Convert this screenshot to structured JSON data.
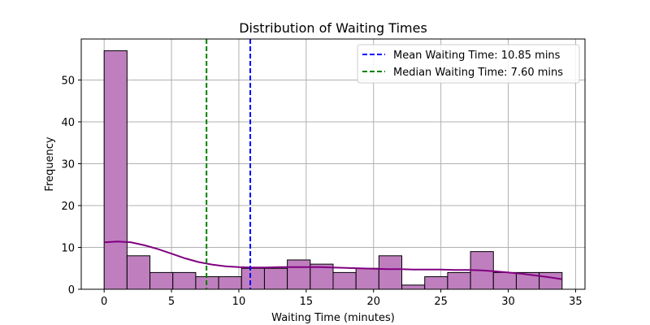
{
  "chart_data": {
    "type": "histogram",
    "title": "Distribution of Waiting Times",
    "xlabel": "Waiting Time (minutes)",
    "ylabel": "Frequency",
    "xlim": [
      -1.7,
      35.7
    ],
    "ylim": [
      0,
      59.8
    ],
    "xticks": [
      0,
      5,
      10,
      15,
      20,
      25,
      30,
      35
    ],
    "yticks": [
      0,
      10,
      20,
      30,
      40,
      50
    ],
    "grid": true,
    "bin_edges": [
      0,
      1.7,
      3.4,
      5.1,
      6.8,
      8.5,
      10.2,
      11.9,
      13.6,
      15.3,
      17.0,
      18.7,
      20.4,
      22.1,
      23.8,
      25.5,
      27.2,
      28.9,
      30.6,
      32.3,
      34.0
    ],
    "counts": [
      57,
      8,
      4,
      4,
      3,
      3,
      5,
      5,
      7,
      6,
      4,
      5,
      8,
      1,
      3,
      4,
      9,
      4,
      4,
      4
    ],
    "bar_color": "#bf7fbf",
    "bar_edge_color": "#000000",
    "kde": {
      "color": "#800080",
      "x": [
        0,
        1,
        2,
        3,
        4,
        5,
        6,
        7,
        8,
        9,
        10,
        11,
        12,
        13,
        14,
        15,
        16,
        17,
        18,
        19,
        20,
        21,
        22,
        23,
        24,
        25,
        26,
        27,
        28,
        29,
        30,
        31,
        32,
        33,
        34
      ],
      "y": [
        11.2,
        11.4,
        11.2,
        10.5,
        9.6,
        8.5,
        7.4,
        6.5,
        5.9,
        5.5,
        5.3,
        5.2,
        5.2,
        5.3,
        5.3,
        5.3,
        5.3,
        5.2,
        5.1,
        5.0,
        4.9,
        4.8,
        4.8,
        4.7,
        4.7,
        4.7,
        4.6,
        4.6,
        4.5,
        4.3,
        4.0,
        3.7,
        3.3,
        2.9,
        2.4
      ]
    },
    "vlines": [
      {
        "label": "Mean Waiting Time: 10.85 mins",
        "x": 10.85,
        "color": "#0000ff"
      },
      {
        "label": "Median Waiting Time: 7.60 mins",
        "x": 7.6,
        "color": "#008000"
      }
    ],
    "legend_position": "top-right"
  }
}
